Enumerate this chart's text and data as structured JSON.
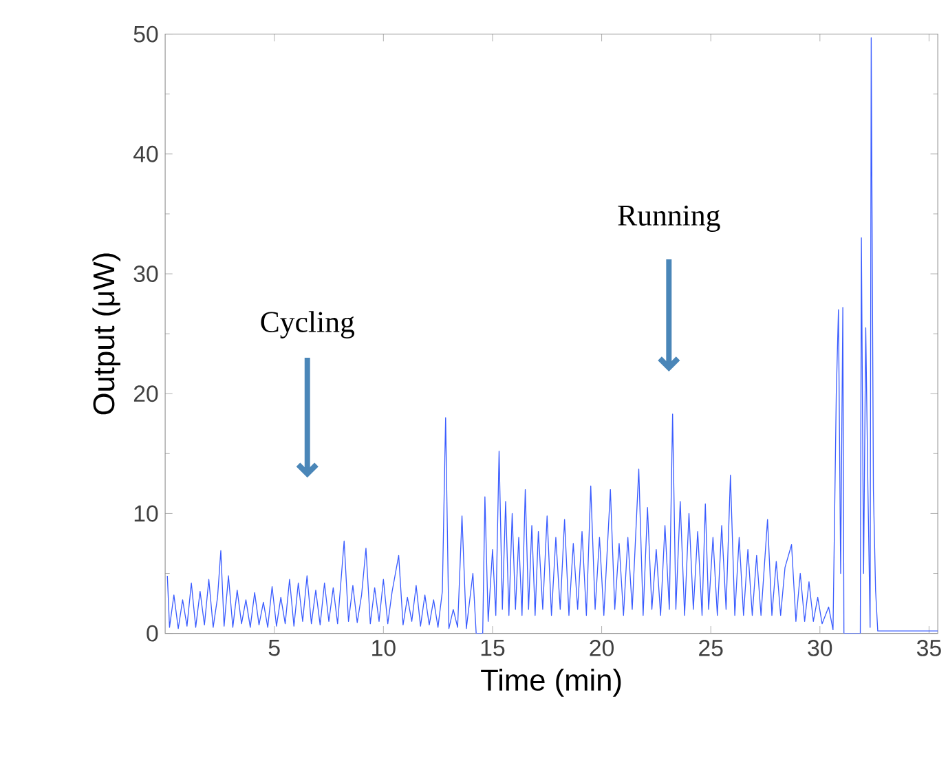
{
  "chart_data": {
    "type": "line",
    "xlabel": "Time (min)",
    "ylabel": "Output (μW)",
    "xlim": [
      0,
      35.4
    ],
    "ylim": [
      0,
      50
    ],
    "xticks": [
      5,
      10,
      15,
      20,
      25,
      30,
      35
    ],
    "yticks": [
      0,
      10,
      20,
      30,
      40,
      50
    ],
    "marker": "none",
    "annotations": [
      "Cycling",
      "Running"
    ],
    "x": [
      0.1,
      0.2,
      0.4,
      0.6,
      0.8,
      1.0,
      1.2,
      1.4,
      1.6,
      1.8,
      2.0,
      2.2,
      2.4,
      2.55,
      2.7,
      2.9,
      3.1,
      3.3,
      3.5,
      3.7,
      3.9,
      4.1,
      4.3,
      4.5,
      4.7,
      4.9,
      5.1,
      5.3,
      5.5,
      5.7,
      5.9,
      6.1,
      6.3,
      6.5,
      6.7,
      6.9,
      7.1,
      7.3,
      7.5,
      7.7,
      7.9,
      8.2,
      8.4,
      8.6,
      8.8,
      9.0,
      9.2,
      9.4,
      9.6,
      9.8,
      10.0,
      10.2,
      10.4,
      10.7,
      10.9,
      11.1,
      11.3,
      11.5,
      11.7,
      11.9,
      12.1,
      12.3,
      12.5,
      12.7,
      12.85,
      13.0,
      13.2,
      13.4,
      13.6,
      13.8,
      14.1,
      14.25,
      14.55,
      14.65,
      14.8,
      15.0,
      15.15,
      15.3,
      15.45,
      15.6,
      15.75,
      15.9,
      16.05,
      16.2,
      16.35,
      16.5,
      16.65,
      16.8,
      16.95,
      17.1,
      17.3,
      17.5,
      17.7,
      17.9,
      18.1,
      18.3,
      18.5,
      18.7,
      18.9,
      19.1,
      19.3,
      19.5,
      19.7,
      19.9,
      20.1,
      20.4,
      20.6,
      20.8,
      21.0,
      21.2,
      21.4,
      21.7,
      21.9,
      22.1,
      22.3,
      22.5,
      22.7,
      22.9,
      23.1,
      23.25,
      23.4,
      23.6,
      23.8,
      24.0,
      24.2,
      24.4,
      24.6,
      24.75,
      24.9,
      25.1,
      25.3,
      25.5,
      25.7,
      25.9,
      26.1,
      26.3,
      26.5,
      26.7,
      26.9,
      27.1,
      27.3,
      27.6,
      27.8,
      28.0,
      28.2,
      28.4,
      28.7,
      28.9,
      29.1,
      29.3,
      29.5,
      29.7,
      29.9,
      30.1,
      30.4,
      30.6,
      30.75,
      30.85,
      30.95,
      31.05,
      31.1,
      31.85,
      31.9,
      32.0,
      32.1,
      32.2,
      32.3,
      32.35,
      32.45,
      32.55,
      32.65,
      35.4
    ],
    "series": [
      {
        "color": "#3a5cff",
        "values": [
          4.8,
          0.5,
          3.2,
          0.4,
          2.8,
          0.6,
          4.2,
          0.5,
          3.5,
          0.7,
          4.5,
          0.5,
          3.0,
          6.9,
          0.6,
          4.8,
          0.5,
          3.6,
          0.8,
          2.8,
          0.5,
          3.4,
          0.7,
          2.6,
          0.5,
          3.9,
          0.6,
          3.0,
          0.8,
          4.5,
          0.6,
          4.2,
          1.0,
          4.8,
          0.8,
          3.6,
          0.7,
          4.2,
          1.0,
          3.8,
          0.8,
          7.7,
          1.0,
          4.0,
          0.9,
          3.2,
          7.1,
          0.8,
          3.8,
          1.0,
          4.5,
          0.8,
          3.5,
          6.5,
          0.7,
          3.0,
          1.0,
          4.0,
          0.6,
          3.2,
          0.7,
          2.8,
          0.5,
          3.5,
          18.0,
          0.4,
          2.0,
          0.5,
          9.8,
          0.4,
          5.0,
          0,
          0,
          11.4,
          1.0,
          7.0,
          1.5,
          15.2,
          2.0,
          11.0,
          1.5,
          10.0,
          2.0,
          8.0,
          1.5,
          12.0,
          2.0,
          9.0,
          1.5,
          8.5,
          2.0,
          9.8,
          1.5,
          8.0,
          2.0,
          9.5,
          1.5,
          7.5,
          2.0,
          8.5,
          1.5,
          12.3,
          2.0,
          8.0,
          1.5,
          12.0,
          2.0,
          7.5,
          1.5,
          8.0,
          2.0,
          13.7,
          1.5,
          10.5,
          2.0,
          7.0,
          1.5,
          9.0,
          2.0,
          18.3,
          2.0,
          11.0,
          1.5,
          10.0,
          2.0,
          8.5,
          1.5,
          10.8,
          2.0,
          8.0,
          1.5,
          9.0,
          2.0,
          13.2,
          1.5,
          8.0,
          1.5,
          7.0,
          1.5,
          6.5,
          1.5,
          9.5,
          1.5,
          6.0,
          1.5,
          5.5,
          7.4,
          1.0,
          5.0,
          1.0,
          4.3,
          1.0,
          3.0,
          0.8,
          2.2,
          0.3,
          20,
          27.0,
          5,
          27.2,
          0,
          0,
          33,
          5,
          25.5,
          12,
          0.5,
          49.7,
          12,
          3.6,
          0.2,
          0.2
        ]
      }
    ]
  }
}
